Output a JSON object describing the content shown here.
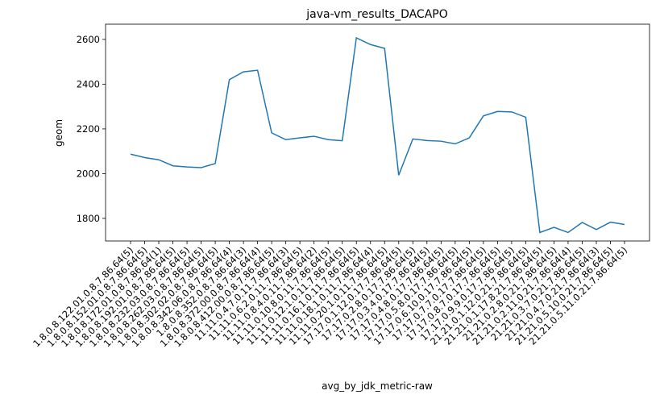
{
  "chart_data": {
    "type": "line",
    "title": "java-vm_results_DACAPO",
    "xlabel": "avg_by_jdk_metric-raw",
    "ylabel": "geom",
    "categories": [
      "1.8.0.8.122.01.0.8.7.86.64(5)",
      "1.8.0.8.152.01.0.8.7.86.64(5)",
      "1.8.0.8.172.01.0.8.7.86.64(1)",
      "1.8.0.8.192.01.0.8.7.86.64(5)",
      "1.8.0.8.232.03.0.8.7.86.64(5)",
      "1.8.0.8.262.03.0.8.7.86.64(5)",
      "1.8.0.8.302.02.0.8.7.86.64(5)",
      "1.8.0.8.342.06.0.8.7.86.64(4)",
      "1.8.0.8.352.0.8.7.86.64(3)",
      "1.8.0.8.372.00.0.8.7.86.64(4)",
      "1.8.0.8.412.00.0.8.7.86.64(5)",
      "11.11.0.4.7.0.11.7.86.64(3)",
      "11.11.0.6.2.0.11.7.86.64(5)",
      "11.11.0.8.4.0.11.7.86.64(2)",
      "11.11.0.10.8.0.11.7.86.64(5)",
      "11.11.0.12.1.0.11.7.86.64(5)",
      "11.11.0.16.1.0.11.7.86.64(5)",
      "11.11.0.18.1.0.11.7.86.64(4)",
      "11.11.0.20.1.0.11.7.86.64(5)",
      "17.17.0.1.12.0.17.7.86.64(5)",
      "17.17.0.2.8.0.17.7.86.64(5)",
      "17.17.0.3.4.0.17.7.86.64(5)",
      "17.17.0.4.8.0.17.7.86.64(5)",
      "17.17.0.5.8.0.17.7.86.64(5)",
      "17.17.0.6.10.0.17.7.86.64(5)",
      "17.17.0.7.7.0.17.7.86.64(5)",
      "17.17.0.8.7.0.17.7.86.64(5)",
      "17.17.0.9.9.0.17.7.86.64(5)",
      "21.21.0.1.12.0.21.7.86.64(5)",
      "21.21.0.1.17.8.21.7.86.64(5)",
      "21.21.0.2.8.0.21.7.86.64(5)",
      "21.21.0.2.11.0.21.7.86.64(4)",
      "21.21.0.3.7.0.21.7.86.64(5)",
      "21.21.0.4.7.0.21.7.86.64(3)",
      "21.21.0.5.10.0.21.7.86.64(5)",
      "21.21.0.5.11.0.21.7.86.64(5)"
    ],
    "series": [
      {
        "name": "geom",
        "color": "#1f77b4",
        "values": [
          2087,
          2072,
          2062,
          2035,
          2030,
          2027,
          2045,
          2420,
          2455,
          2462,
          2182,
          2152,
          2160,
          2167,
          2152,
          2147,
          2607,
          2577,
          2560,
          1993,
          2155,
          2148,
          2145,
          2133,
          2160,
          2258,
          2278,
          2276,
          2252,
          1737,
          1760,
          1737,
          1782,
          1750,
          1783,
          1773
        ]
      }
    ],
    "ylim": [
      1699,
      2668
    ],
    "yticks": [
      1800,
      2000,
      2200,
      2400,
      2600
    ]
  }
}
